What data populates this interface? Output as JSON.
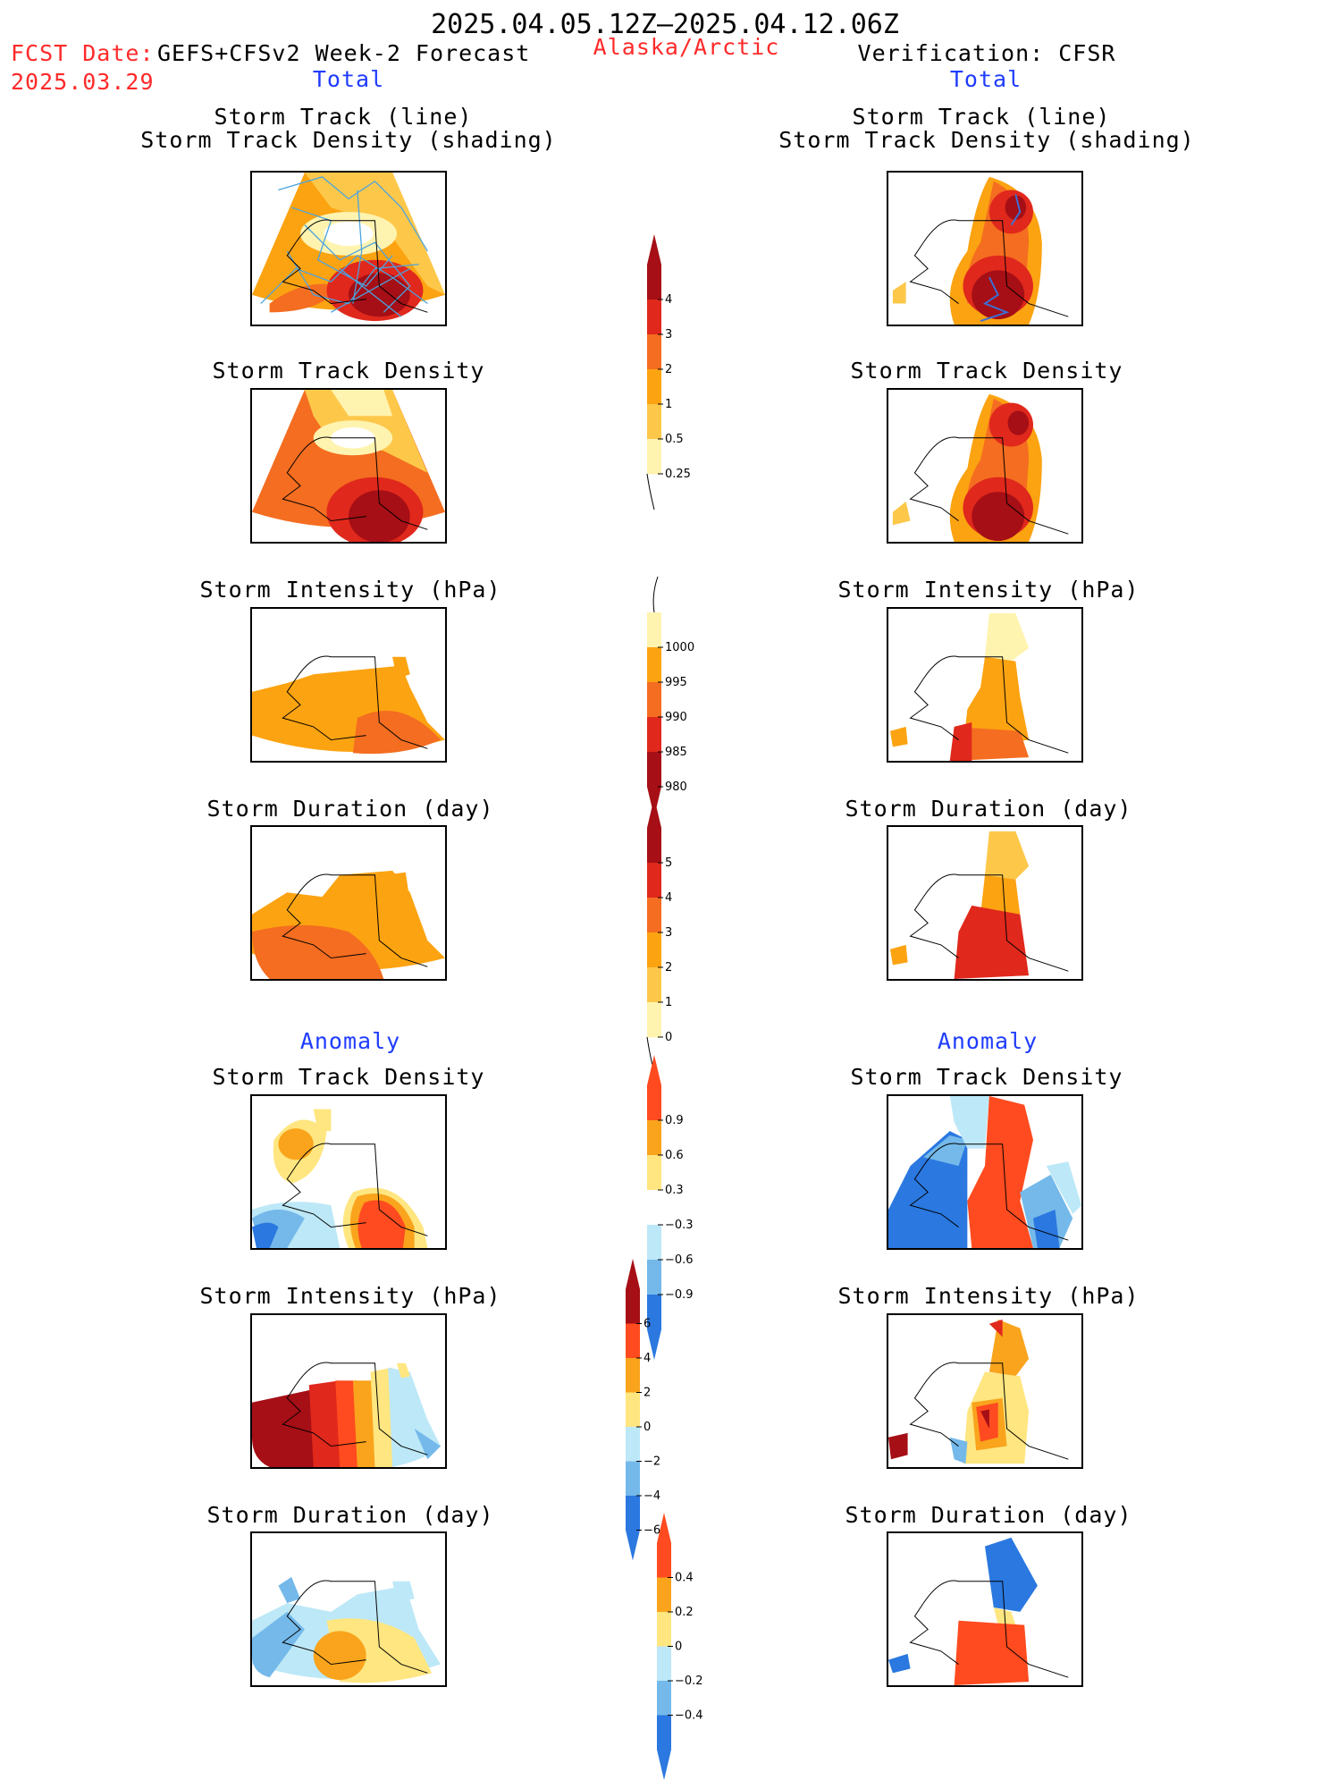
{
  "header": {
    "date_range": "2025.04.05.12Z—2025.04.12.06Z",
    "fcst_label": "FCST Date:",
    "fcst_date": "2025.03.29",
    "model": "GEFS+CFSv2 Week-2 Forecast",
    "region": "Alaska/Arctic",
    "verification": "Verification: CFSR"
  },
  "sections": {
    "total": "Total",
    "anomaly": "Anomaly"
  },
  "panel_titles": {
    "track_line": "Storm Track (line)",
    "track_shading": "Storm Track Density (shading)",
    "density": "Storm Track Density",
    "intensity": "Storm Intensity (hPa)",
    "duration": "Storm Duration (day)"
  },
  "colorbars": [
    {
      "id": "density",
      "ticks": [
        "4",
        "3",
        "2",
        "1",
        "0.5",
        "0.25"
      ],
      "colors": [
        "#a50f15",
        "#e0281c",
        "#f46d20",
        "#fca311",
        "#fdc84a",
        "#fff3b0"
      ]
    },
    {
      "id": "intensity",
      "ticks": [
        "1000",
        "995",
        "990",
        "985",
        "980"
      ],
      "colors": [
        "#fff3b0",
        "#fca311",
        "#f46d20",
        "#e0281c",
        "#a50f15"
      ]
    },
    {
      "id": "duration",
      "ticks": [
        "5",
        "4",
        "3",
        "2",
        "1",
        "0"
      ],
      "colors": [
        "#a50f15",
        "#e0281c",
        "#f46d20",
        "#fca311",
        "#fdc84a",
        "#fff3b0"
      ]
    },
    {
      "id": "anom-density",
      "ticks": [
        "0.9",
        "0.6",
        "0.3",
        "−0.3",
        "−0.6",
        "−0.9"
      ],
      "colors": [
        "#ff4b1f",
        "#f9a41c",
        "#ffe680",
        "#ffffff",
        "#bde8f7",
        "#74b9ea",
        "#2a78e0"
      ]
    },
    {
      "id": "anom-intensity",
      "ticks": [
        "6",
        "4",
        "2",
        "0",
        "−2",
        "−4",
        "−6"
      ],
      "colors": [
        "#a50f15",
        "#ff4b1f",
        "#f9a41c",
        "#ffe680",
        "#bde8f7",
        "#74b9ea",
        "#2a78e0"
      ]
    },
    {
      "id": "anom-duration",
      "ticks": [
        "0.4",
        "0.2",
        "0",
        "−0.2",
        "−0.4"
      ],
      "colors": [
        "#ff4b1f",
        "#f9a41c",
        "#ffe680",
        "#bde8f7",
        "#74b9ea",
        "#2a78e0"
      ]
    }
  ],
  "colors": {
    "title_red": "#ff2a2a",
    "title_blue": "#1f3cff",
    "track_line_forecast": "#4aa3e0",
    "track_line_verification": "#3b6fd6"
  }
}
